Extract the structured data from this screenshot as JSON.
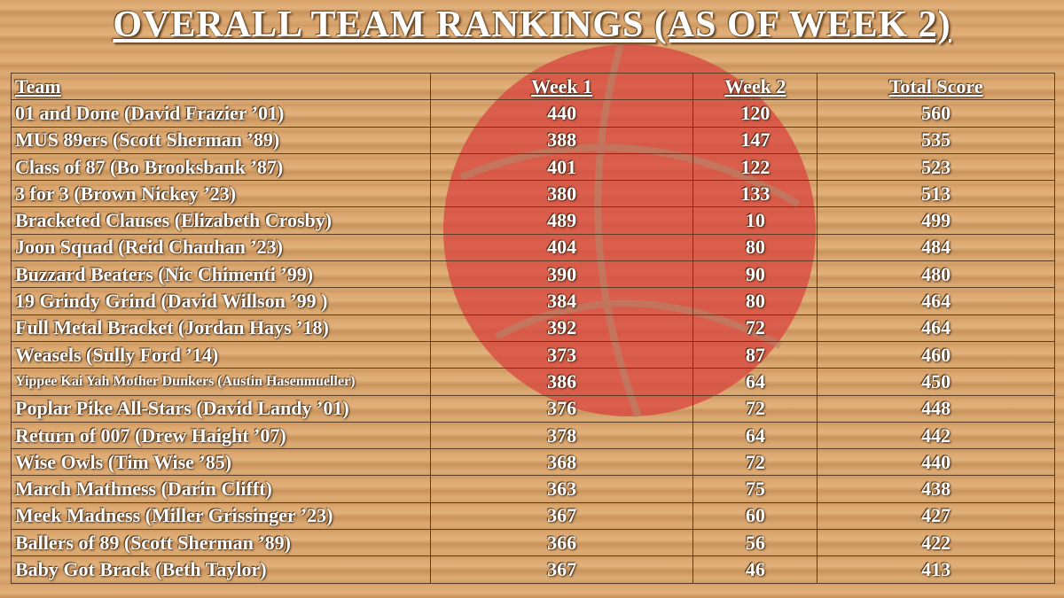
{
  "header": {
    "title": "OVERALL TEAM RANKINGS (AS OF WEEK 2)"
  },
  "table": {
    "columns": [
      "Team",
      "Week 1",
      "Week 2",
      "Total Score"
    ],
    "rows": [
      [
        "01 and Done (David Frazier ’01)",
        440,
        120,
        560
      ],
      [
        "MUS 89ers (Scott Sherman ’89)",
        388,
        147,
        535
      ],
      [
        "Class of 87 (Bo Brooksbank ’87)",
        401,
        122,
        523
      ],
      [
        "3 for 3 (Brown Nickey ’23)",
        380,
        133,
        513
      ],
      [
        "Bracketed Clauses (Elizabeth Crosby)",
        489,
        10,
        499
      ],
      [
        "Joon Squad (Reid Chauhan ’23)",
        404,
        80,
        484
      ],
      [
        "Buzzard Beaters (Nic Chimenti ’99)",
        390,
        90,
        480
      ],
      [
        "19 Grindy Grind (David Willson ’99 )",
        384,
        80,
        464
      ],
      [
        "Full Metal Bracket (Jordan Hays ’18)",
        392,
        72,
        464
      ],
      [
        "Weasels (Sully Ford ’14)",
        373,
        87,
        460
      ],
      [
        "Yippee Kai Yah Mother Dunkers (Austin Hasenmueller)",
        386,
        64,
        450
      ],
      [
        "Poplar Pike All-Stars (David Landy ’01)",
        376,
        72,
        448
      ],
      [
        "Return of 007 (Drew Haight ’07)",
        378,
        64,
        442
      ],
      [
        "Wise Owls (Tim Wise ’85)",
        368,
        72,
        440
      ],
      [
        "March Mathness (Darin Clifft)",
        363,
        75,
        438
      ],
      [
        "Meek Madness (Miller Grissinger ’23)",
        367,
        60,
        427
      ],
      [
        "Ballers of 89 (Scott Sherman ’89)",
        366,
        56,
        422
      ],
      [
        "Baby Got Brack (Beth Taylor)",
        367,
        46,
        413
      ]
    ]
  }
}
